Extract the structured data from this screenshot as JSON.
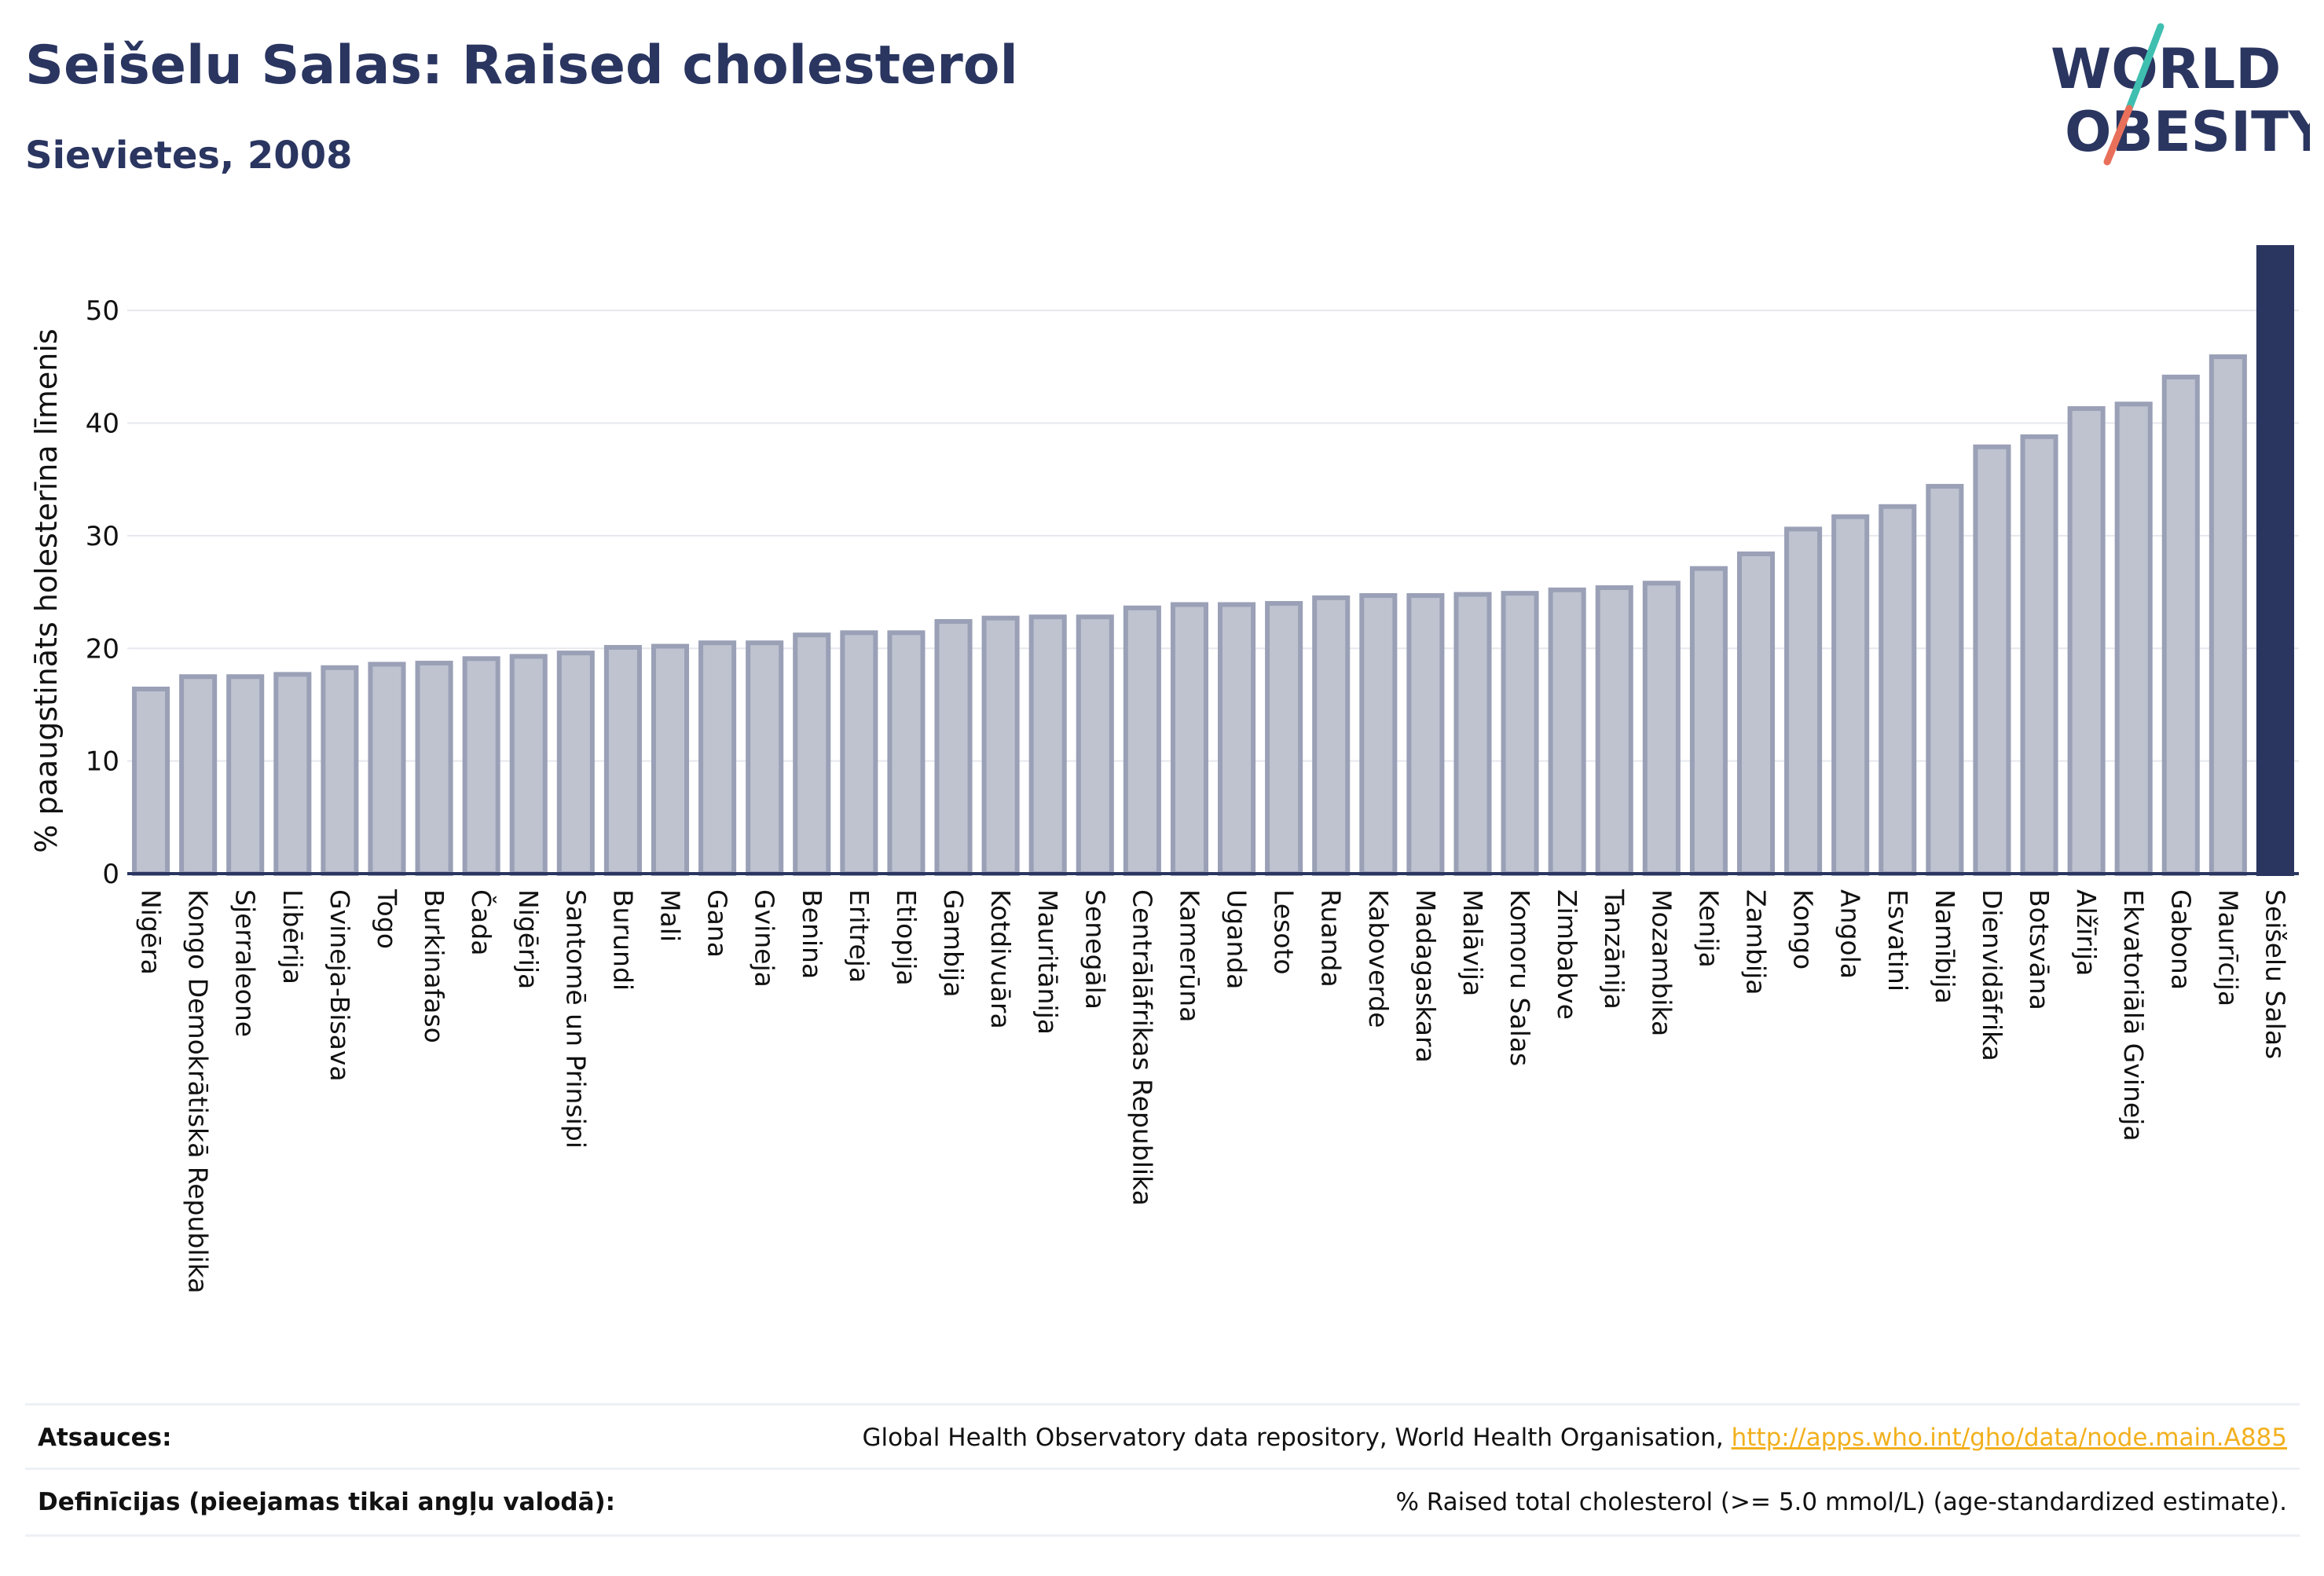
{
  "header": {
    "title": "Seišelu Salas: Raised cholesterol",
    "subtitle": "Sievietes, 2008"
  },
  "logo": {
    "line1": "WORLD",
    "line2": "OBESITY",
    "colors": {
      "text": "#2a3560",
      "slash_top": "#3fbfb0",
      "slash_bottom": "#e8705a"
    }
  },
  "colors": {
    "bar_fill": "#bfc3d0",
    "bar_stroke": "#9aa0b6",
    "highlight": "#2a3560",
    "grid": "#e6e8ee",
    "axis": "#2a3560"
  },
  "chart_data": {
    "type": "bar",
    "title": "",
    "xlabel": "",
    "ylabel": "% paaugstināts holesterīna līmenis",
    "ylim": [
      0,
      55.8
    ],
    "yticks": [
      0,
      10,
      20,
      30,
      40,
      50
    ],
    "grid": true,
    "highlight_category": "Seišelu Salas",
    "categories": [
      "Nigēra",
      "Kongo Demokrātiskā Republika",
      "Sjerraleone",
      "Libērija",
      "Gvineja-Bisava",
      "Togo",
      "Burkinafaso",
      "Čada",
      "Nigērija",
      "Santomē un Prinsipi",
      "Burundi",
      "Mali",
      "Gana",
      "Gvineja",
      "Benina",
      "Eritreja",
      "Etiopija",
      "Gambija",
      "Kotdivuāra",
      "Mauritānija",
      "Senegāla",
      "Centrālāfrikas Republika",
      "Kamerūna",
      "Uganda",
      "Lesoto",
      "Ruanda",
      "Kaboverde",
      "Madagaskara",
      "Malāvija",
      "Komoru Salas",
      "Zimbabve",
      "Tanzānija",
      "Mozambika",
      "Kenija",
      "Zambija",
      "Kongo",
      "Angola",
      "Esvatini",
      "Namībija",
      "Dienvidāfrika",
      "Botsvāna",
      "Alžīrija",
      "Ekvatoriālā Gvineja",
      "Gabona",
      "Maurīcija",
      "Seišelu Salas"
    ],
    "values": [
      16.6,
      17.7,
      17.7,
      17.9,
      18.5,
      18.8,
      18.9,
      19.3,
      19.5,
      19.8,
      20.3,
      20.4,
      20.7,
      20.7,
      21.4,
      21.6,
      21.6,
      22.6,
      22.9,
      23.0,
      23.0,
      23.8,
      24.1,
      24.1,
      24.2,
      24.7,
      24.9,
      24.9,
      25.0,
      25.1,
      25.4,
      25.6,
      26.0,
      27.3,
      28.6,
      30.8,
      31.9,
      32.8,
      34.6,
      38.1,
      39.0,
      41.5,
      41.9,
      44.3,
      46.1,
      55.8
    ]
  },
  "footer": {
    "sources_label": "Atsauces:",
    "sources_text": "Global Health Observatory data repository, World Health Organisation, ",
    "sources_link": "http://apps.who.int/gho/data/node.main.A885",
    "definitions_label": "Definīcijas (pieejamas tikai angļu valodā):",
    "definitions_text": "% Raised total cholesterol (>= 5.0 mmol/L) (age-standardized estimate)."
  }
}
